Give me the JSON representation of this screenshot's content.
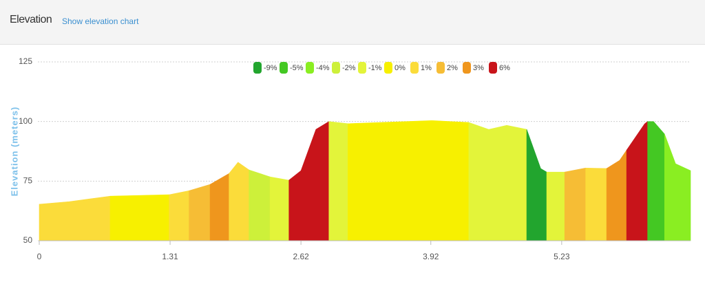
{
  "header": {
    "title": "Elevation",
    "link": "Show elevation chart"
  },
  "chart_data": {
    "type": "area",
    "y_label": "Elevation (meters)",
    "xlim": [
      0,
      6.52
    ],
    "xticks": [
      0,
      1.31,
      2.62,
      3.92,
      5.23
    ],
    "ylim": [
      50,
      125
    ],
    "yticks": [
      50,
      75,
      100,
      125
    ],
    "grid": true,
    "legend": [
      {
        "name": "-9%",
        "color": "#22a52e"
      },
      {
        "name": "-5%",
        "color": "#44c823"
      },
      {
        "name": "-4%",
        "color": "#8aee22"
      },
      {
        "name": "-2%",
        "color": "#cdf03a"
      },
      {
        "name": "-1%",
        "color": "#e3f43a"
      },
      {
        "name": "0%",
        "color": "#f7f000"
      },
      {
        "name": "1%",
        "color": "#fbdc3a"
      },
      {
        "name": "2%",
        "color": "#f6bd35"
      },
      {
        "name": "3%",
        "color": "#ef961d"
      },
      {
        "name": "6%",
        "color": "#c8141a"
      }
    ],
    "segments": [
      {
        "color": "#fbdc3a",
        "x": [
          0,
          0.3,
          0.71
        ],
        "values": [
          65.3,
          66.4,
          68.7
        ]
      },
      {
        "color": "#f7f000",
        "x": [
          0.71,
          1.3
        ],
        "values": [
          68.7,
          69.3
        ]
      },
      {
        "color": "#fbdc3a",
        "x": [
          1.3,
          1.5
        ],
        "values": [
          69.3,
          71
        ]
      },
      {
        "color": "#f6bd35",
        "x": [
          1.5,
          1.71
        ],
        "values": [
          71,
          73.6
        ]
      },
      {
        "color": "#ef961d",
        "x": [
          1.71,
          1.9
        ],
        "values": [
          73.6,
          78.2
        ]
      },
      {
        "color": "#fbdc3a",
        "x": [
          1.9,
          1.99,
          2.1
        ],
        "values": [
          78.2,
          82.9,
          79.7
        ]
      },
      {
        "color": "#cdf03a",
        "x": [
          2.1,
          2.31
        ],
        "values": [
          79.7,
          76.8
        ]
      },
      {
        "color": "#e3f43a",
        "x": [
          2.31,
          2.5
        ],
        "values": [
          76.8,
          75.4
        ]
      },
      {
        "color": "#c8141a",
        "x": [
          2.5,
          2.62,
          2.77,
          2.9
        ],
        "values": [
          75.4,
          79.4,
          96.7,
          100
        ]
      },
      {
        "color": "#e3f43a",
        "x": [
          2.9,
          3.09
        ],
        "values": [
          100,
          99.1
        ]
      },
      {
        "color": "#f7f000",
        "x": [
          3.09,
          3.93,
          4.3
        ],
        "values": [
          99.1,
          100.4,
          99.6
        ]
      },
      {
        "color": "#e3f43a",
        "x": [
          4.3,
          4.5,
          4.68,
          4.88
        ],
        "values": [
          99.6,
          96.7,
          98.4,
          96.7
        ]
      },
      {
        "color": "#22a52e",
        "x": [
          4.88,
          5.02,
          5.08
        ],
        "values": [
          96.7,
          80.3,
          78.8
        ]
      },
      {
        "color": "#e3f43a",
        "x": [
          5.08,
          5.26
        ],
        "values": [
          78.8,
          78.8
        ]
      },
      {
        "color": "#f6bd35",
        "x": [
          5.26,
          5.47
        ],
        "values": [
          78.8,
          80.5
        ]
      },
      {
        "color": "#fbdc3a",
        "x": [
          5.47,
          5.68
        ],
        "values": [
          80.5,
          80.3
        ]
      },
      {
        "color": "#ef961d",
        "x": [
          5.68,
          5.81,
          5.88
        ],
        "values": [
          80.3,
          83.7,
          88
        ]
      },
      {
        "color": "#c8141a",
        "x": [
          5.88,
          6.06,
          6.09
        ],
        "values": [
          88,
          99,
          100
        ]
      },
      {
        "color": "#44c823",
        "x": [
          6.09,
          6.15,
          6.26
        ],
        "values": [
          100,
          100,
          94.7
        ]
      },
      {
        "color": "#8aee22",
        "x": [
          6.26,
          6.37,
          6.52
        ],
        "values": [
          94.7,
          82.3,
          79.4
        ]
      }
    ]
  }
}
